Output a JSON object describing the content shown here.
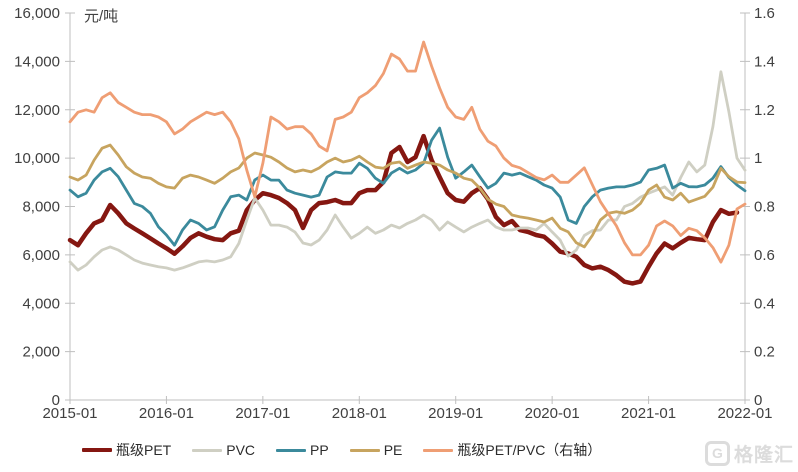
{
  "watermark": {
    "logo_letter": "G",
    "text": "格隆汇"
  },
  "chart_data": {
    "type": "line",
    "unit": "元/吨",
    "grid": false,
    "legend_position": "bottom",
    "axis_color": "#BFBFBF",
    "tick_text_color": "#404040",
    "x_tick_labels": [
      "2015-01",
      "2016-01",
      "2017-01",
      "2018-01",
      "2019-01",
      "2020-01",
      "2021-01",
      "2022-01"
    ],
    "x_months_total": 85,
    "left_axis": {
      "min": 0,
      "max": 16000,
      "step": 2000,
      "tick_labels": [
        "0",
        "2,000",
        "4,000",
        "6,000",
        "8,000",
        "10,000",
        "12,000",
        "14,000",
        "16,000"
      ]
    },
    "right_axis": {
      "min": 0,
      "max": 1.6,
      "step": 0.2,
      "tick_labels": [
        "0",
        "0.2",
        "0.4",
        "0.6",
        "0.8",
        "1",
        "1.2",
        "1.4",
        "1.6"
      ]
    },
    "series": [
      {
        "name": "瓶级PET",
        "axis": "left",
        "color": "#851711",
        "width": 4.5,
        "values": [
          6610,
          6400,
          6890,
          7300,
          7440,
          8060,
          7720,
          7300,
          7090,
          6890,
          6680,
          6470,
          6270,
          6050,
          6350,
          6700,
          6890,
          6750,
          6650,
          6610,
          6890,
          7000,
          7850,
          8270,
          8550,
          8470,
          8350,
          8140,
          7850,
          7110,
          7850,
          8140,
          8180,
          8270,
          8140,
          8140,
          8550,
          8680,
          8680,
          9010,
          10210,
          10460,
          9840,
          10040,
          10910,
          9920,
          9220,
          8550,
          8270,
          8200,
          8550,
          8760,
          8300,
          7570,
          7230,
          7400,
          7030,
          6950,
          6820,
          6750,
          6470,
          6130,
          6060,
          5920,
          5580,
          5440,
          5510,
          5370,
          5160,
          4890,
          4820,
          4900,
          5510,
          6060,
          6470,
          6270,
          6500,
          6700,
          6650,
          6610,
          7360,
          7850,
          7700,
          7750,
          null
        ]
      },
      {
        "name": "PVC",
        "axis": "left",
        "color": "#CFCFC3",
        "width": 2.8,
        "values": [
          5710,
          5370,
          5580,
          5920,
          6200,
          6330,
          6200,
          6000,
          5790,
          5660,
          5580,
          5510,
          5460,
          5370,
          5460,
          5580,
          5710,
          5750,
          5710,
          5790,
          5920,
          6470,
          7440,
          8350,
          7850,
          7230,
          7230,
          7150,
          6940,
          6490,
          6410,
          6610,
          7030,
          7650,
          7150,
          6690,
          6890,
          7150,
          6890,
          7030,
          7230,
          7110,
          7300,
          7440,
          7650,
          7440,
          7030,
          7360,
          7150,
          6950,
          7150,
          7300,
          7440,
          7150,
          7030,
          7030,
          7110,
          7110,
          7030,
          7300,
          6950,
          6610,
          5950,
          6200,
          6800,
          7000,
          7030,
          7440,
          7440,
          8000,
          8130,
          8390,
          8550,
          8680,
          8810,
          8470,
          9200,
          9840,
          9430,
          9710,
          11300,
          13570,
          11910,
          10000,
          9500
        ]
      },
      {
        "name": "PP",
        "axis": "left",
        "color": "#3B8A9C",
        "width": 2.8,
        "values": [
          8680,
          8400,
          8550,
          9090,
          9430,
          9580,
          9230,
          8680,
          8130,
          8000,
          7720,
          7160,
          6820,
          6400,
          7030,
          7440,
          7300,
          7030,
          7160,
          7850,
          8400,
          8470,
          8270,
          9100,
          9300,
          9090,
          9090,
          8680,
          8550,
          8470,
          8390,
          8470,
          9220,
          9430,
          9380,
          9380,
          9790,
          9580,
          9170,
          8960,
          9380,
          9580,
          9380,
          9510,
          9790,
          10740,
          11240,
          10040,
          9170,
          9430,
          9710,
          9230,
          8760,
          8960,
          9380,
          9300,
          9380,
          9230,
          9090,
          8890,
          8760,
          8390,
          7440,
          7300,
          8000,
          8400,
          8680,
          8760,
          8810,
          8810,
          8890,
          9010,
          9510,
          9580,
          9710,
          8760,
          8960,
          8820,
          8810,
          8890,
          9170,
          9650,
          9200,
          8890,
          8650
        ]
      },
      {
        "name": "PE",
        "axis": "left",
        "color": "#C7A45F",
        "width": 2.8,
        "values": [
          9220,
          9090,
          9300,
          9920,
          10410,
          10540,
          10130,
          9640,
          9380,
          9220,
          9170,
          8960,
          8810,
          8760,
          9170,
          9300,
          9220,
          9090,
          8960,
          9170,
          9430,
          9590,
          10000,
          10210,
          10130,
          10040,
          9840,
          9590,
          9430,
          9510,
          9430,
          9590,
          9840,
          10000,
          9840,
          9920,
          10080,
          9840,
          9630,
          9580,
          9790,
          9840,
          9580,
          9710,
          9840,
          9790,
          9710,
          9510,
          9380,
          9170,
          9090,
          8760,
          8300,
          8100,
          8000,
          7650,
          7570,
          7520,
          7440,
          7360,
          7520,
          7100,
          6950,
          6500,
          6330,
          6800,
          7440,
          7720,
          7780,
          7720,
          7850,
          8130,
          8680,
          8890,
          8390,
          8270,
          8550,
          8180,
          8300,
          8420,
          8800,
          9580,
          9230,
          9010,
          8990
        ]
      },
      {
        "name": "瓶级PET/PVC（右轴）",
        "axis": "right",
        "color": "#EF9E74",
        "width": 2.8,
        "values": [
          1.15,
          1.19,
          1.2,
          1.19,
          1.25,
          1.27,
          1.23,
          1.21,
          1.19,
          1.18,
          1.18,
          1.17,
          1.15,
          1.1,
          1.12,
          1.15,
          1.17,
          1.19,
          1.18,
          1.19,
          1.15,
          1.08,
          0.95,
          0.84,
          0.98,
          1.17,
          1.15,
          1.12,
          1.13,
          1.13,
          1.1,
          1.05,
          1.03,
          1.16,
          1.17,
          1.19,
          1.25,
          1.27,
          1.3,
          1.35,
          1.43,
          1.41,
          1.36,
          1.36,
          1.48,
          1.38,
          1.29,
          1.21,
          1.17,
          1.16,
          1.21,
          1.12,
          1.07,
          1.05,
          1.0,
          0.97,
          0.96,
          0.94,
          0.92,
          0.91,
          0.93,
          0.9,
          0.9,
          0.93,
          0.96,
          0.89,
          0.82,
          0.77,
          0.72,
          0.65,
          0.6,
          0.6,
          0.64,
          0.72,
          0.74,
          0.72,
          0.68,
          0.71,
          0.7,
          0.67,
          0.63,
          0.57,
          0.64,
          0.79,
          0.81
        ]
      }
    ]
  }
}
